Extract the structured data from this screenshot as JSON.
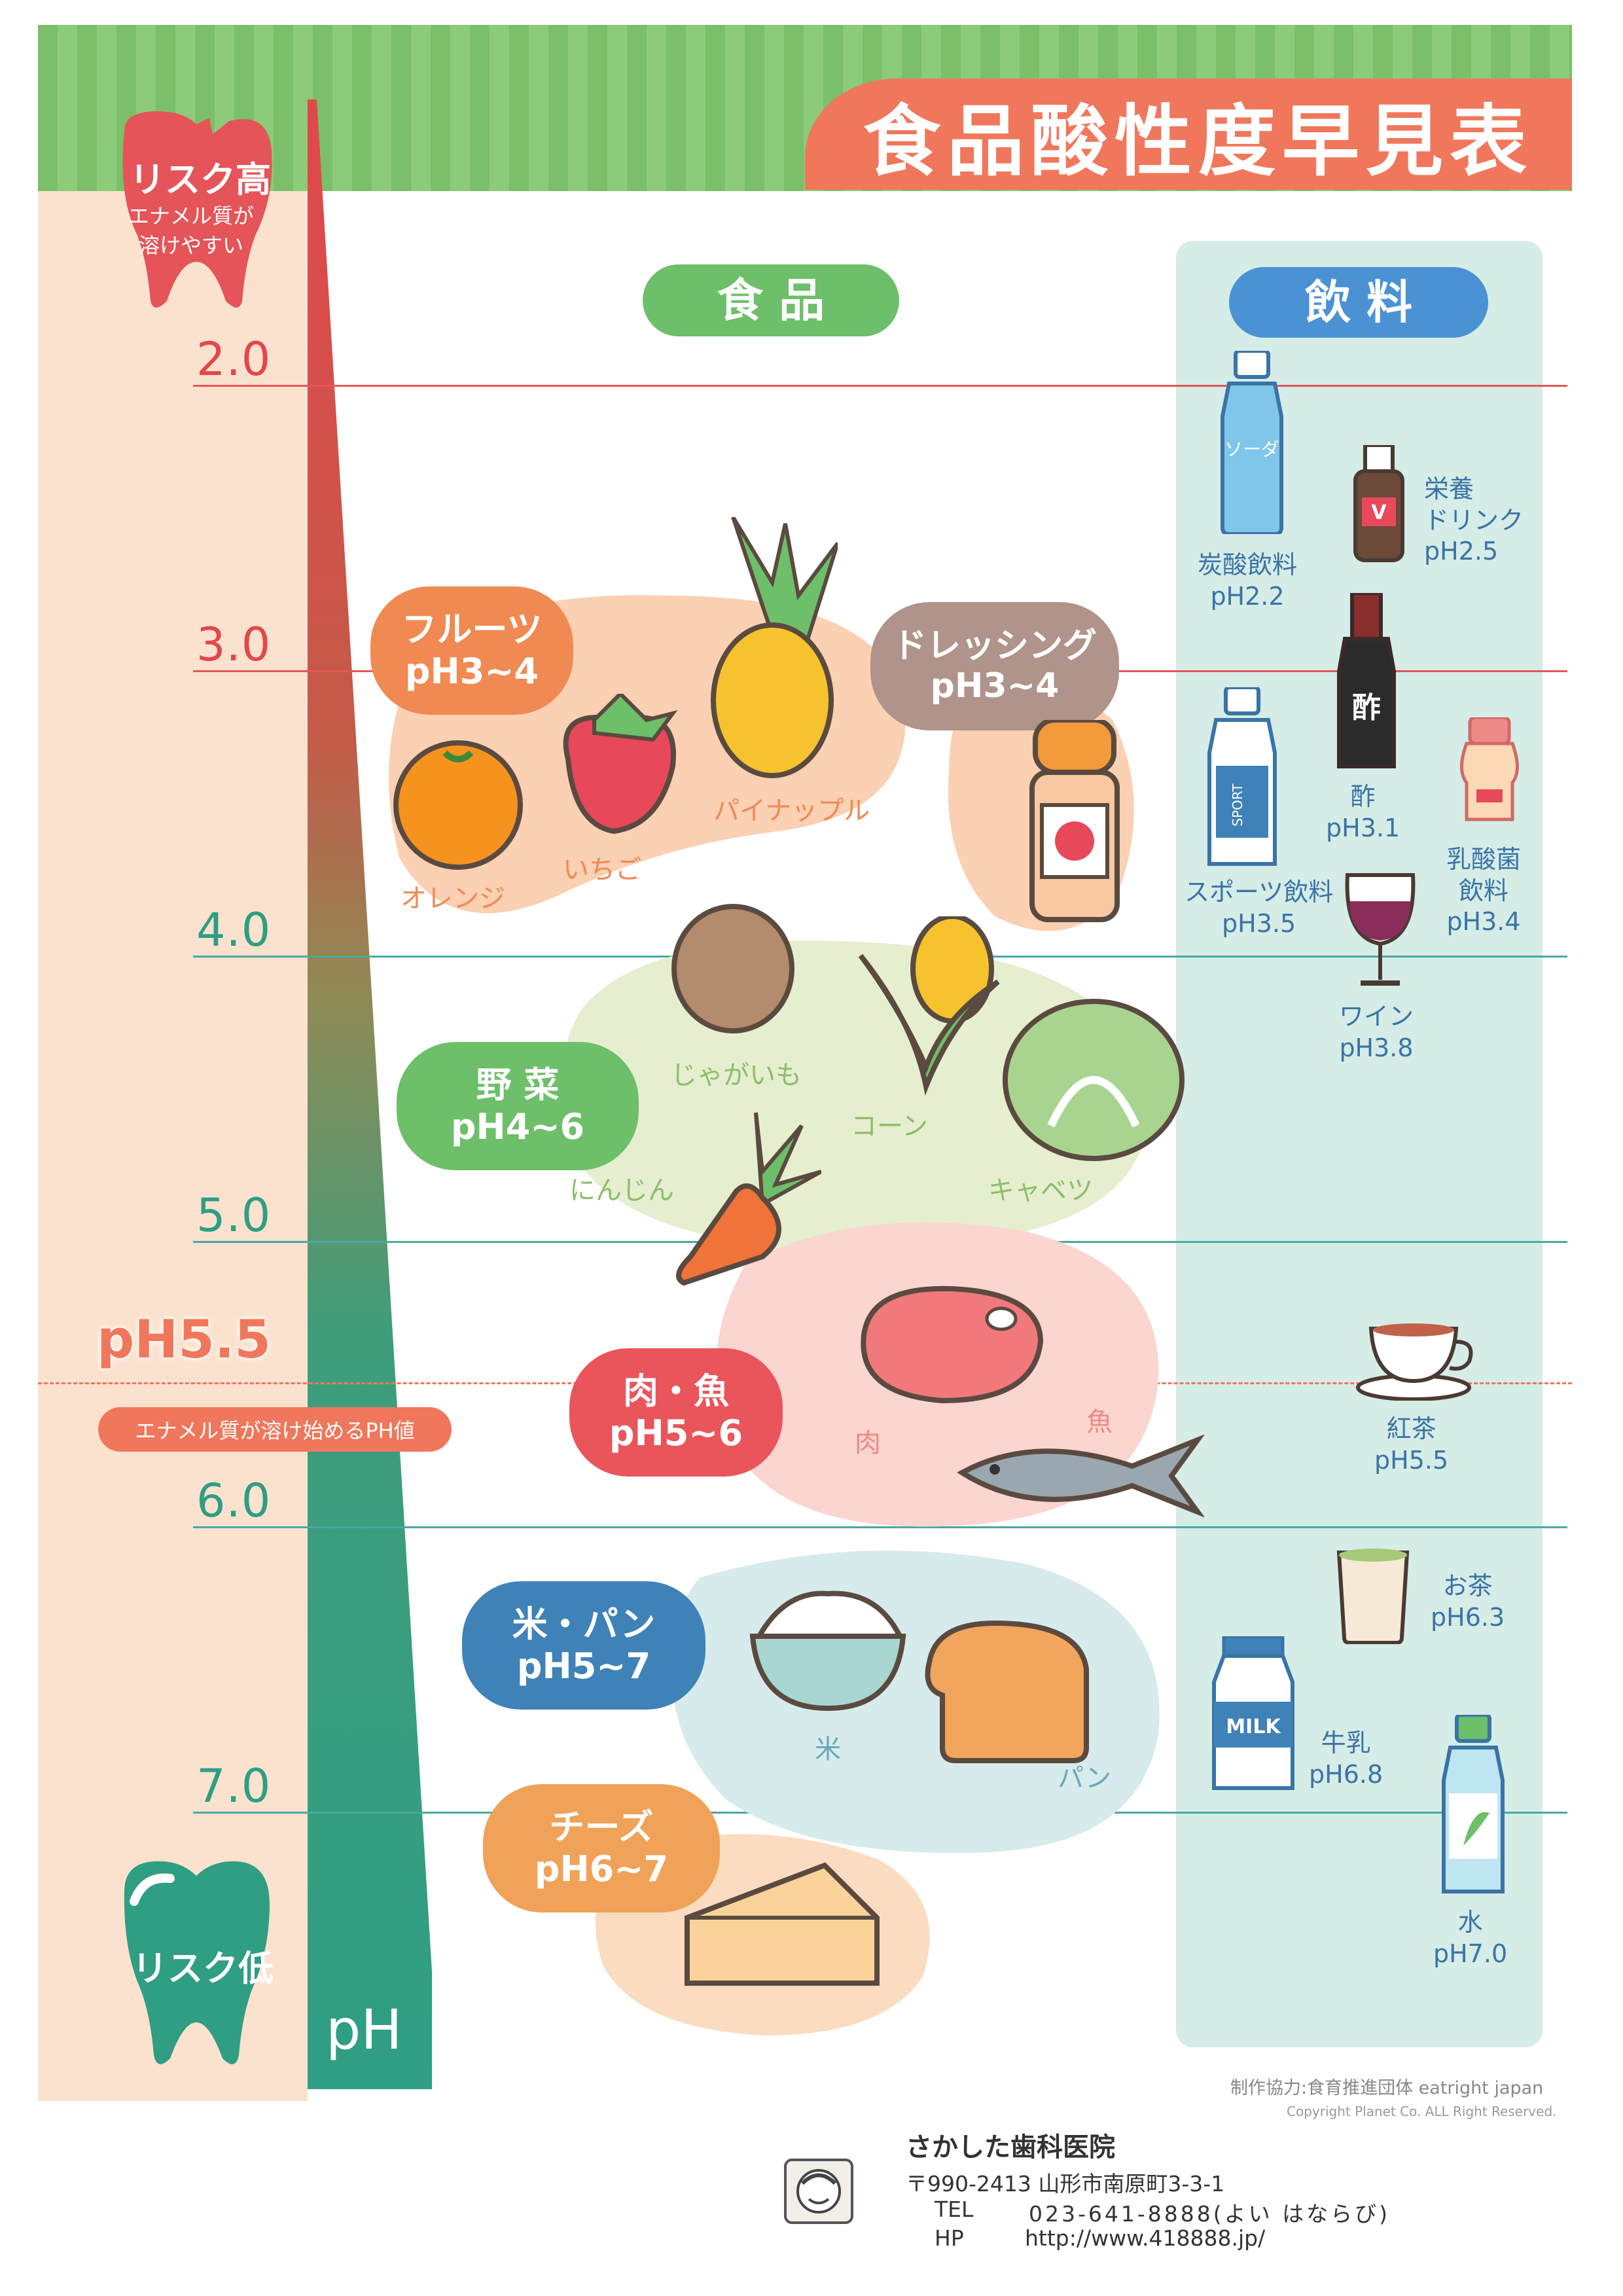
{
  "title": "食品酸性度早見表",
  "risk_high": {
    "label": "リスク高",
    "note_line1": "エナメル質が",
    "note_line2": "溶けやすい"
  },
  "risk_low": {
    "label": "リスク低"
  },
  "ph_axis_label": "pH",
  "ph_ticks": [
    "2.0",
    "3.0",
    "4.0",
    "5.0",
    "6.0",
    "7.0"
  ],
  "threshold": {
    "value": "pH5.5",
    "note": "エナメル質が溶け始めるPH値"
  },
  "headers": {
    "food": "食 品",
    "drink": "飲 料"
  },
  "food_groups": {
    "fruit": {
      "name": "フルーツ",
      "ph": "pH3~4",
      "items": [
        "オレンジ",
        "いちご",
        "パイナップル"
      ]
    },
    "dressing": {
      "name": "ドレッシング",
      "ph": "pH3~4"
    },
    "vegetable": {
      "name": "野 菜",
      "ph": "pH4~6",
      "items": [
        "じゃがいも",
        "コーン",
        "にんじん",
        "キャベツ"
      ]
    },
    "meat_fish": {
      "name": "肉・魚",
      "ph": "pH5~6",
      "items": [
        "肉",
        "魚"
      ]
    },
    "rice_bread": {
      "name": "米・パン",
      "ph": "pH5~7",
      "items": [
        "米",
        "パン"
      ]
    },
    "cheese": {
      "name": "チーズ",
      "ph": "pH6~7"
    }
  },
  "drinks": {
    "soda": {
      "name": "炭酸飲料",
      "ph": "pH2.2",
      "bottle_text": "ソーダ"
    },
    "energy": {
      "name1": "栄養",
      "name2": "ドリンク",
      "ph": "pH2.5",
      "bottle_text": "V"
    },
    "vinegar": {
      "name": "酢",
      "ph": "pH3.1",
      "bottle_text": "酢"
    },
    "lactic": {
      "name1": "乳酸菌",
      "name2": "飲料",
      "ph": "pH3.4"
    },
    "sports": {
      "name": "スポーツ飲料",
      "ph": "pH3.5",
      "bottle_text": "SPORT"
    },
    "wine": {
      "name": "ワイン",
      "ph": "pH3.8"
    },
    "tea": {
      "name": "紅茶",
      "ph": "pH5.5"
    },
    "green_tea": {
      "name": "お茶",
      "ph": "pH6.3"
    },
    "milk": {
      "name": "牛乳",
      "ph": "pH6.8",
      "carton_text": "MILK"
    },
    "water": {
      "name": "水",
      "ph": "pH7.0"
    }
  },
  "credits": {
    "cooperation": "制作協力:食育推進団体 eatright japan",
    "copyright": "Copyright Planet Co. ALL Right Reserved."
  },
  "clinic": {
    "name": "さかした歯科医院",
    "address": "〒990-2413 山形市南原町3-3-1",
    "tel_label": "TEL",
    "tel": "023-641-8888(よい はならび)",
    "hp_label": "HP",
    "hp": "http://www.418888.jp/"
  },
  "colors": {
    "salmon": "#f0775b",
    "green": "#7bbf6a",
    "teal": "#3aa98e",
    "red_line": "#e5565a",
    "teal_line": "#4aa9a0",
    "drink_text": "#3a74a6"
  }
}
